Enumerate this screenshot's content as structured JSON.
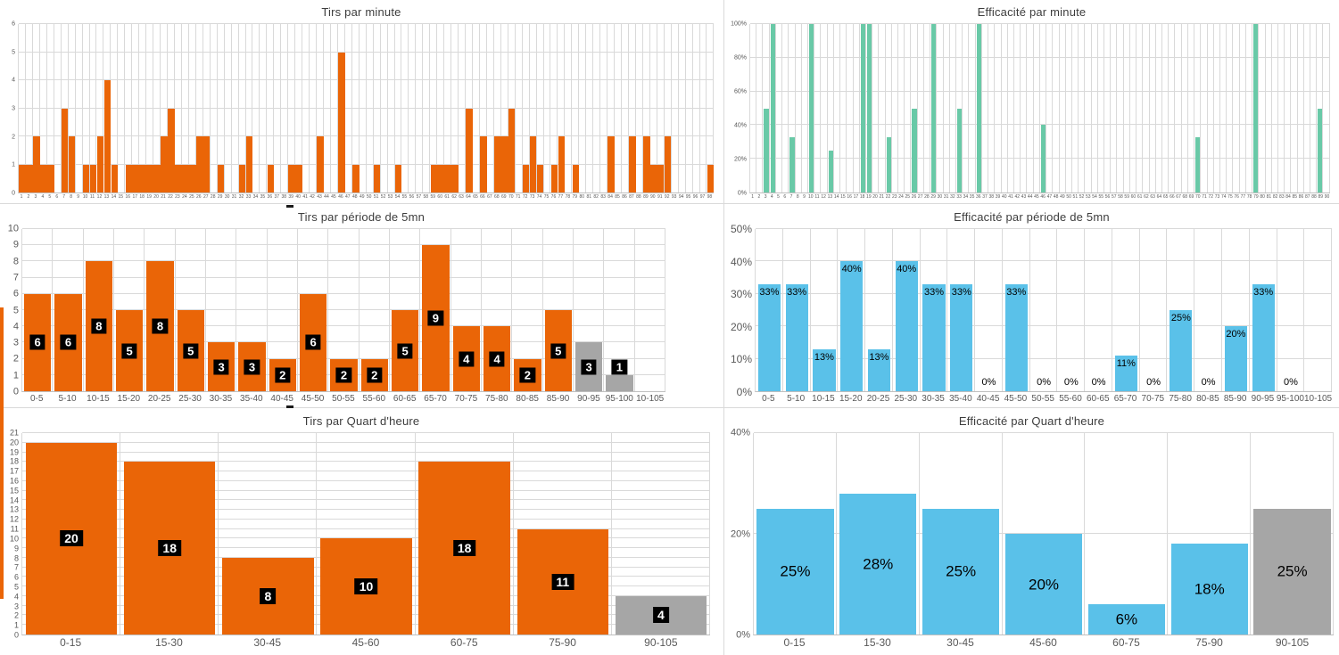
{
  "chart_data": [
    {
      "type": "bar",
      "title": "Tirs par minute",
      "categories": [
        1,
        2,
        3,
        4,
        5,
        6,
        7,
        8,
        9,
        10,
        11,
        12,
        13,
        14,
        15,
        16,
        17,
        18,
        19,
        20,
        21,
        22,
        23,
        24,
        25,
        26,
        27,
        28,
        29,
        30,
        31,
        32,
        33,
        34,
        35,
        36,
        37,
        38,
        39,
        40,
        41,
        42,
        43,
        44,
        45,
        46,
        47,
        48,
        49,
        50,
        51,
        52,
        53,
        54,
        55,
        56,
        57,
        58,
        59,
        60,
        61,
        62,
        63,
        64,
        65,
        66,
        67,
        68,
        69,
        70,
        71,
        72,
        73,
        74,
        75,
        76,
        77,
        78,
        79,
        80,
        81,
        82,
        83,
        84,
        85,
        86,
        87,
        88,
        89,
        90,
        91,
        92,
        93,
        94,
        95,
        96,
        97,
        98
      ],
      "values": [
        1,
        1,
        2,
        1,
        1,
        0,
        3,
        2,
        0,
        1,
        1,
        2,
        4,
        1,
        0,
        1,
        1,
        1,
        1,
        1,
        2,
        3,
        1,
        1,
        1,
        2,
        2,
        0,
        1,
        0,
        0,
        1,
        2,
        0,
        0,
        1,
        0,
        0,
        1,
        1,
        0,
        0,
        2,
        0,
        0,
        5,
        0,
        1,
        0,
        0,
        1,
        0,
        0,
        1,
        0,
        0,
        0,
        0,
        1,
        1,
        1,
        1,
        0,
        3,
        0,
        2,
        0,
        2,
        2,
        3,
        0,
        1,
        2,
        1,
        0,
        1,
        2,
        0,
        1,
        0,
        0,
        0,
        0,
        2,
        0,
        0,
        2,
        0,
        2,
        1,
        1,
        2,
        0,
        0,
        0,
        0,
        0,
        1
      ],
      "ylim": [
        0,
        6
      ],
      "yticks": [
        "0",
        "1",
        "2",
        "3",
        "4",
        "5",
        "6"
      ],
      "bar_color": "#EA6507",
      "grid": true,
      "xlabel": "",
      "ylabel": ""
    },
    {
      "type": "bar",
      "title": "Efficacité par minute",
      "categories": [
        1,
        2,
        3,
        4,
        5,
        6,
        7,
        8,
        9,
        10,
        11,
        12,
        13,
        14,
        15,
        16,
        17,
        18,
        19,
        20,
        21,
        22,
        23,
        24,
        25,
        26,
        27,
        28,
        29,
        30,
        31,
        32,
        33,
        34,
        35,
        36,
        37,
        38,
        39,
        40,
        41,
        42,
        43,
        44,
        45,
        46,
        47,
        48,
        49,
        50,
        51,
        52,
        53,
        54,
        55,
        56,
        57,
        58,
        59,
        60,
        61,
        62,
        63,
        64,
        65,
        66,
        67,
        68,
        69,
        70,
        71,
        72,
        73,
        74,
        75,
        76,
        77,
        78,
        79,
        80,
        81,
        82,
        83,
        84,
        85,
        86,
        87,
        88,
        89,
        90
      ],
      "values": [
        0,
        0,
        50,
        100,
        0,
        0,
        33,
        0,
        0,
        100,
        0,
        0,
        25,
        0,
        0,
        0,
        0,
        100,
        100,
        0,
        0,
        33,
        0,
        0,
        0,
        50,
        0,
        0,
        100,
        0,
        0,
        0,
        50,
        0,
        0,
        100,
        0,
        0,
        0,
        0,
        0,
        0,
        0,
        0,
        0,
        40,
        0,
        0,
        0,
        0,
        0,
        0,
        0,
        0,
        0,
        0,
        0,
        0,
        0,
        0,
        0,
        0,
        0,
        0,
        0,
        0,
        0,
        0,
        0,
        33,
        0,
        0,
        0,
        0,
        0,
        0,
        0,
        0,
        100,
        0,
        0,
        0,
        0,
        0,
        0,
        0,
        0,
        0,
        50,
        0
      ],
      "value_unit": "%",
      "ylim": [
        0,
        100
      ],
      "yticks": [
        "0%",
        "20%",
        "40%",
        "60%",
        "80%",
        "100%"
      ],
      "bar_color": "#69C9A7",
      "grid": true,
      "xlabel": "",
      "ylabel": ""
    },
    {
      "type": "bar",
      "title": "Tirs par période de 5mn",
      "categories": [
        "0-5",
        "5-10",
        "10-15",
        "15-20",
        "20-25",
        "25-30",
        "30-35",
        "35-40",
        "40-45",
        "45-50",
        "50-55",
        "55-60",
        "60-65",
        "65-70",
        "70-75",
        "75-80",
        "80-85",
        "85-90",
        "90-95",
        "95-100",
        "10-105"
      ],
      "values": [
        6,
        6,
        8,
        5,
        8,
        5,
        3,
        3,
        2,
        6,
        2,
        2,
        5,
        9,
        4,
        4,
        2,
        5,
        3,
        1,
        0
      ],
      "labels": [
        "6",
        "6",
        "8",
        "5",
        "8",
        "5",
        "3",
        "3",
        "2",
        "6",
        "2",
        "2",
        "5",
        "9",
        "4",
        "4",
        "2",
        "5",
        "3",
        "1",
        ""
      ],
      "label_mode": "box",
      "ylim": [
        0,
        10
      ],
      "yticks": [
        "0",
        "1",
        "2",
        "3",
        "4",
        "5",
        "6",
        "7",
        "8",
        "9",
        "10"
      ],
      "bar_color": "#EA6507",
      "point_colors": {
        "18": "#A6A6A6",
        "19": "#A6A6A6"
      },
      "grid": true,
      "xlabel": "",
      "ylabel": ""
    },
    {
      "type": "bar",
      "title": "Efficacité par période de 5mn",
      "categories": [
        "0-5",
        "5-10",
        "10-15",
        "15-20",
        "20-25",
        "25-30",
        "30-35",
        "35-40",
        "40-45",
        "45-50",
        "50-55",
        "55-60",
        "60-65",
        "65-70",
        "70-75",
        "75-80",
        "80-85",
        "85-90",
        "90-95",
        "95-100",
        "10-105"
      ],
      "values": [
        33,
        33,
        13,
        40,
        13,
        40,
        33,
        33,
        0,
        33,
        0,
        0,
        0,
        11,
        0,
        25,
        0,
        20,
        33,
        0,
        0
      ],
      "labels": [
        "33%",
        "33%",
        "13%",
        "40%",
        "13%",
        "40%",
        "33%",
        "33%",
        "0%",
        "33%",
        "0%",
        "0%",
        "0%",
        "11%",
        "0%",
        "25%",
        "0%",
        "20%",
        "33%",
        "0%",
        ""
      ],
      "value_unit": "%",
      "label_mode": "top",
      "ylim": [
        0,
        50
      ],
      "yticks": [
        "0%",
        "10%",
        "20%",
        "30%",
        "40%",
        "50%"
      ],
      "bar_color": "#5AC1E9",
      "grid": true,
      "xlabel": "",
      "ylabel": ""
    },
    {
      "type": "bar",
      "title": "Tirs par Quart d'heure",
      "categories": [
        "0-15",
        "15-30",
        "30-45",
        "45-60",
        "60-75",
        "75-90",
        "90-105"
      ],
      "values": [
        20,
        18,
        8,
        10,
        18,
        11,
        4
      ],
      "labels": [
        "20",
        "18",
        "8",
        "10",
        "18",
        "11",
        "4"
      ],
      "label_mode": "box",
      "ylim": [
        0,
        21
      ],
      "yticks": [
        "0",
        "1",
        "2",
        "3",
        "4",
        "5",
        "6",
        "7",
        "8",
        "9",
        "10",
        "11",
        "12",
        "13",
        "14",
        "15",
        "16",
        "17",
        "18",
        "19",
        "20",
        "21"
      ],
      "bar_color": "#EA6507",
      "point_colors": {
        "6": "#A6A6A6"
      },
      "grid": true,
      "xlabel": "",
      "ylabel": ""
    },
    {
      "type": "bar",
      "title": "Efficacité par Quart d'heure",
      "categories": [
        "0-15",
        "15-30",
        "30-45",
        "45-60",
        "60-75",
        "75-90",
        "90-105"
      ],
      "values": [
        25,
        28,
        25,
        20,
        6,
        18,
        25
      ],
      "labels": [
        "25%",
        "28%",
        "25%",
        "20%",
        "6%",
        "18%",
        "25%"
      ],
      "value_unit": "%",
      "label_mode": "center",
      "ylim": [
        0,
        40
      ],
      "yticks": [
        "0%",
        "20%",
        "40%"
      ],
      "bar_color": "#5AC1E9",
      "point_colors": {
        "6": "#A6A6A6"
      },
      "grid": true,
      "xlabel": "",
      "ylabel": ""
    }
  ],
  "colors": {
    "orange": "#EA6507",
    "green": "#69C9A7",
    "blue": "#5AC1E9",
    "gray_bar": "#A6A6A6",
    "gridline": "#D9D9D9",
    "label_box_bg": "#000000",
    "label_box_text": "#FFFFFF"
  }
}
